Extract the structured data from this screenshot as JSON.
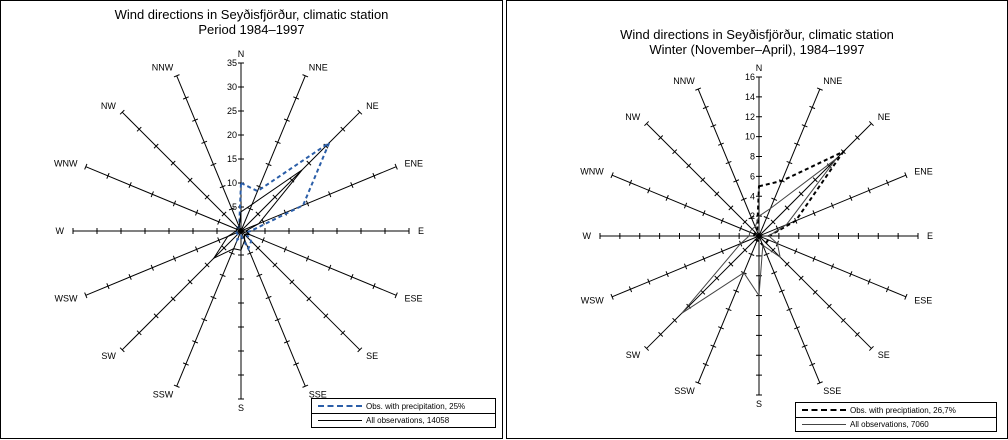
{
  "chart_data": [
    {
      "type": "radar",
      "title": "Wind directions in Seyðisfjörður, climatic station",
      "subtitle": "Period 1984–1997",
      "directions": [
        "N",
        "NNE",
        "NE",
        "ENE",
        "E",
        "ESE",
        "SE",
        "SSE",
        "S",
        "SSW",
        "SW",
        "WSW",
        "W",
        "WNW",
        "NW",
        "NNW"
      ],
      "rlim": [
        0,
        35
      ],
      "ticks": [
        5,
        10,
        15,
        20,
        25,
        30,
        35
      ],
      "series": [
        {
          "name": "Obs. with precipitation, 25%",
          "style": "dashed",
          "color": "#2b5ea8",
          "values": [
            10,
            9,
            26,
            14,
            2,
            1,
            3,
            4,
            1,
            2,
            1,
            1,
            1,
            1,
            1,
            1
          ]
        },
        {
          "name": "All observations, 14058",
          "style": "solid",
          "color": "#000000",
          "values": [
            4,
            6,
            18,
            4,
            1,
            2,
            1,
            2,
            4,
            4,
            8,
            3,
            1,
            1,
            1,
            1
          ]
        }
      ]
    },
    {
      "type": "radar",
      "title": "Wind directions in Seyðisfjörður, climatic station",
      "subtitle": "Winter (November–April), 1984–1997",
      "directions": [
        "N",
        "NNE",
        "NE",
        "ENE",
        "E",
        "ESE",
        "SE",
        "SSE",
        "S",
        "SSW",
        "SW",
        "WSW",
        "W",
        "WNW",
        "NW",
        "NNW"
      ],
      "rlim": [
        0,
        16
      ],
      "ticks": [
        2,
        4,
        6,
        8,
        10,
        12,
        14,
        16
      ],
      "series": [
        {
          "name": "Obs. with preciptiation, 26,7%",
          "style": "dashed",
          "color": "#000000",
          "values": [
            5,
            6,
            12,
            4,
            1,
            1,
            1,
            1,
            0.5,
            0.5,
            0.5,
            0.5,
            0.5,
            0.5,
            0.5,
            0.5
          ]
        },
        {
          "name": "All observations, 7060",
          "style": "solid",
          "color": "#444444",
          "values": [
            2,
            3,
            11,
            3,
            1,
            2,
            3,
            1,
            6,
            4,
            11,
            2,
            1,
            1,
            1,
            1
          ]
        }
      ]
    }
  ]
}
